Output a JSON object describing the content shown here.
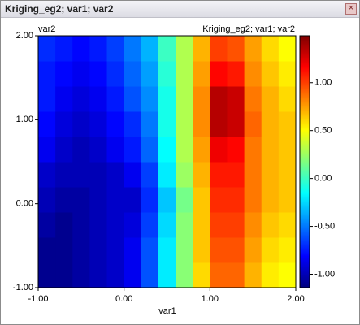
{
  "window_title": "Kriging_eg2; var1; var2",
  "chart_data": {
    "type": "heatmap",
    "title": "Kriging_eg2; var1; var2",
    "xlabel": "var1",
    "ylabel": "var2",
    "xlim": [
      -1,
      2
    ],
    "ylim": [
      -1,
      2
    ],
    "xticks": [
      {
        "value": -1,
        "label": "-1.00"
      },
      {
        "value": 0,
        "label": "0.00"
      },
      {
        "value": 1,
        "label": "1.00"
      },
      {
        "value": 2,
        "label": "2.00"
      }
    ],
    "yticks": [
      {
        "value": -1,
        "label": "-1.00"
      },
      {
        "value": 0,
        "label": "0.00"
      },
      {
        "value": 1,
        "label": "1.00"
      },
      {
        "value": 2,
        "label": "2.00"
      }
    ],
    "clim": [
      -1.14,
      1.49
    ],
    "cticks": [
      {
        "value": -1,
        "label": "-1.00"
      },
      {
        "value": -0.5,
        "label": "-0.50"
      },
      {
        "value": 0,
        "label": "0.00"
      },
      {
        "value": 0.5,
        "label": "0.50"
      },
      {
        "value": 1,
        "label": "1.00"
      }
    ],
    "colorscale": [
      "#00007f",
      "#0000ff",
      "#007fff",
      "#00ffff",
      "#7fff7f",
      "#ffff00",
      "#ff7f00",
      "#ff0000",
      "#7f0000"
    ],
    "x": [
      -0.9,
      -0.7,
      -0.5,
      -0.3,
      -0.1,
      0.1,
      0.3,
      0.5,
      0.7,
      0.9,
      1.1,
      1.3,
      1.5,
      1.7,
      1.9
    ],
    "y": [
      -0.85,
      -0.55,
      -0.25,
      0.05,
      0.35,
      0.65,
      0.95,
      1.25,
      1.55,
      1.85
    ],
    "z": [
      [
        -1.1,
        -1.1,
        -1.05,
        -1.0,
        -0.95,
        -0.85,
        -0.6,
        -0.2,
        0.2,
        0.6,
        0.9,
        0.9,
        0.7,
        0.55,
        0.5
      ],
      [
        -1.1,
        -1.1,
        -1.05,
        -1.0,
        -0.95,
        -0.85,
        -0.6,
        -0.2,
        0.2,
        0.65,
        0.95,
        0.95,
        0.75,
        0.6,
        0.55
      ],
      [
        -1.05,
        -1.1,
        -1.05,
        -1.0,
        -0.95,
        -0.9,
        -0.65,
        -0.25,
        0.2,
        0.65,
        1.0,
        1.0,
        0.8,
        0.65,
        0.6
      ],
      [
        -1.0,
        -1.05,
        -1.05,
        -1.0,
        -0.95,
        -0.95,
        -0.7,
        -0.3,
        0.15,
        0.65,
        1.05,
        1.05,
        0.85,
        0.7,
        0.65
      ],
      [
        -0.95,
        -1.0,
        -1.0,
        -1.0,
        -0.95,
        -0.85,
        -0.65,
        -0.2,
        0.25,
        0.7,
        1.1,
        1.1,
        0.85,
        0.7,
        0.65
      ],
      [
        -0.85,
        -0.95,
        -1.0,
        -0.95,
        -0.85,
        -0.75,
        -0.55,
        -0.15,
        0.3,
        0.75,
        1.2,
        1.15,
        0.85,
        0.7,
        0.65
      ],
      [
        -0.8,
        -0.9,
        -0.95,
        -0.9,
        -0.8,
        -0.7,
        -0.5,
        -0.1,
        0.3,
        0.8,
        1.35,
        1.3,
        0.9,
        0.7,
        0.65
      ],
      [
        -0.75,
        -0.85,
        -0.9,
        -0.85,
        -0.75,
        -0.6,
        -0.45,
        -0.1,
        0.3,
        0.8,
        1.35,
        1.3,
        0.85,
        0.7,
        0.6
      ],
      [
        -0.75,
        -0.8,
        -0.85,
        -0.8,
        -0.7,
        -0.55,
        -0.4,
        -0.05,
        0.3,
        0.75,
        1.15,
        1.1,
        0.8,
        0.65,
        0.55
      ],
      [
        -0.7,
        -0.75,
        -0.8,
        -0.75,
        -0.65,
        -0.5,
        -0.35,
        0.0,
        0.3,
        0.7,
        1.0,
        0.95,
        0.75,
        0.6,
        0.5
      ]
    ]
  }
}
